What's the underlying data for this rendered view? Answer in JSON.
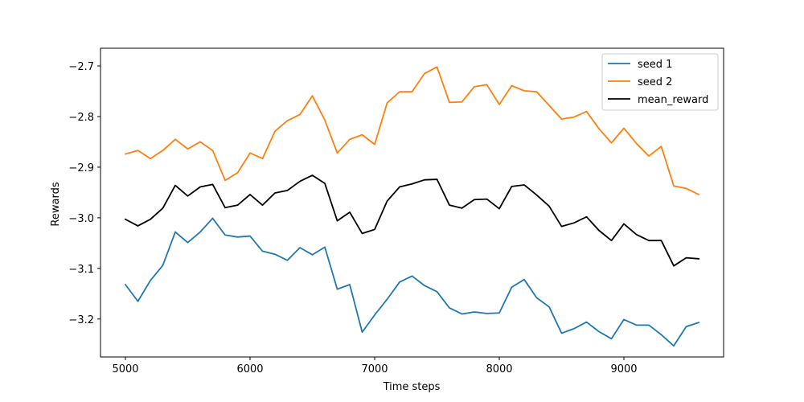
{
  "chart_data": {
    "type": "line",
    "title": "",
    "xlabel": "Time steps",
    "ylabel": "Rewards",
    "xlim": [
      4800,
      9800
    ],
    "ylim": [
      -3.275,
      -2.665
    ],
    "xticks": [
      5000,
      6000,
      7000,
      8000,
      9000
    ],
    "xtick_labels": [
      "5000",
      "6000",
      "7000",
      "8000",
      "9000"
    ],
    "yticks": [
      -3.2,
      -3.1,
      -3.0,
      -2.9,
      -2.8,
      -2.7
    ],
    "ytick_labels": [
      "−3.2",
      "−3.1",
      "−3.0",
      "−2.9",
      "−2.8",
      "−2.7"
    ],
    "grid": false,
    "legend_position": "top-right",
    "x": [
      5000,
      5100,
      5200,
      5300,
      5400,
      5500,
      5600,
      5700,
      5800,
      5900,
      6000,
      6100,
      6200,
      6300,
      6400,
      6500,
      6600,
      6700,
      6800,
      6900,
      7000,
      7100,
      7200,
      7300,
      7400,
      7500,
      7600,
      7700,
      7800,
      7900,
      8000,
      8100,
      8200,
      8300,
      8400,
      8500,
      8600,
      8700,
      8800,
      8900,
      9000,
      9100,
      9200,
      9300,
      9400,
      9500,
      9600
    ],
    "series": [
      {
        "name": "seed 1",
        "color": "#1f77b4",
        "values": [
          -3.132,
          -3.165,
          -3.124,
          -3.094,
          -3.028,
          -3.049,
          -3.028,
          -3.001,
          -3.034,
          -3.038,
          -3.036,
          -3.066,
          -3.072,
          -3.084,
          -3.059,
          -3.073,
          -3.058,
          -3.141,
          -3.132,
          -3.226,
          -3.192,
          -3.161,
          -3.127,
          -3.115,
          -3.134,
          -3.146,
          -3.178,
          -3.19,
          -3.186,
          -3.189,
          -3.188,
          -3.137,
          -3.122,
          -3.158,
          -3.176,
          -3.228,
          -3.219,
          -3.206,
          -3.225,
          -3.239,
          -3.201,
          -3.212,
          -3.212,
          -3.231,
          -3.253,
          -3.215,
          -3.207
        ]
      },
      {
        "name": "seed 2",
        "color": "#ff7f0e",
        "values": [
          -2.874,
          -2.867,
          -2.883,
          -2.867,
          -2.845,
          -2.864,
          -2.85,
          -2.867,
          -2.926,
          -2.911,
          -2.872,
          -2.883,
          -2.829,
          -2.808,
          -2.796,
          -2.759,
          -2.807,
          -2.872,
          -2.845,
          -2.836,
          -2.855,
          -2.773,
          -2.751,
          -2.751,
          -2.715,
          -2.702,
          -2.772,
          -2.771,
          -2.741,
          -2.737,
          -2.776,
          -2.739,
          -2.749,
          -2.751,
          -2.778,
          -2.805,
          -2.801,
          -2.79,
          -2.824,
          -2.852,
          -2.823,
          -2.853,
          -2.878,
          -2.859,
          -2.937,
          -2.942,
          -2.954
        ]
      },
      {
        "name": "mean_reward",
        "color": "#000000",
        "values": [
          -3.003,
          -3.016,
          -3.003,
          -2.981,
          -2.936,
          -2.957,
          -2.939,
          -2.934,
          -2.98,
          -2.975,
          -2.954,
          -2.975,
          -2.951,
          -2.946,
          -2.928,
          -2.916,
          -2.932,
          -3.006,
          -2.989,
          -3.031,
          -3.023,
          -2.967,
          -2.939,
          -2.933,
          -2.925,
          -2.924,
          -2.975,
          -2.981,
          -2.964,
          -2.963,
          -2.982,
          -2.938,
          -2.935,
          -2.955,
          -2.977,
          -3.017,
          -3.01,
          -2.998,
          -3.025,
          -3.045,
          -3.012,
          -3.033,
          -3.045,
          -3.045,
          -3.095,
          -3.079,
          -3.081
        ]
      }
    ]
  }
}
